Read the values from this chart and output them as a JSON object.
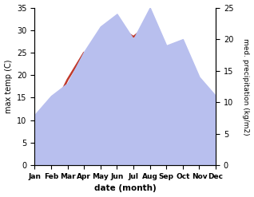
{
  "months": [
    "Jan",
    "Feb",
    "Mar",
    "Apr",
    "May",
    "Jun",
    "Jul",
    "Aug",
    "Sep",
    "Oct",
    "Nov",
    "Dec"
  ],
  "temperature": [
    6,
    11.5,
    19,
    25,
    23,
    31,
    28.5,
    31.5,
    25,
    15,
    10,
    9.5
  ],
  "precipitation": [
    8,
    11,
    13,
    18,
    22,
    24,
    20,
    25,
    19,
    20,
    14,
    11
  ],
  "temp_color": "#c0392b",
  "precip_color_fill": "#b8bfee",
  "temp_ylim": [
    0,
    35
  ],
  "precip_ylim": [
    0,
    25
  ],
  "temp_yticks": [
    0,
    5,
    10,
    15,
    20,
    25,
    30,
    35
  ],
  "precip_yticks": [
    0,
    5,
    10,
    15,
    20,
    25
  ],
  "ylabel_left": "max temp (C)",
  "ylabel_right": "med. precipitation (kg/m2)",
  "xlabel": "date (month)",
  "fig_width": 3.18,
  "fig_height": 2.47,
  "dpi": 100
}
